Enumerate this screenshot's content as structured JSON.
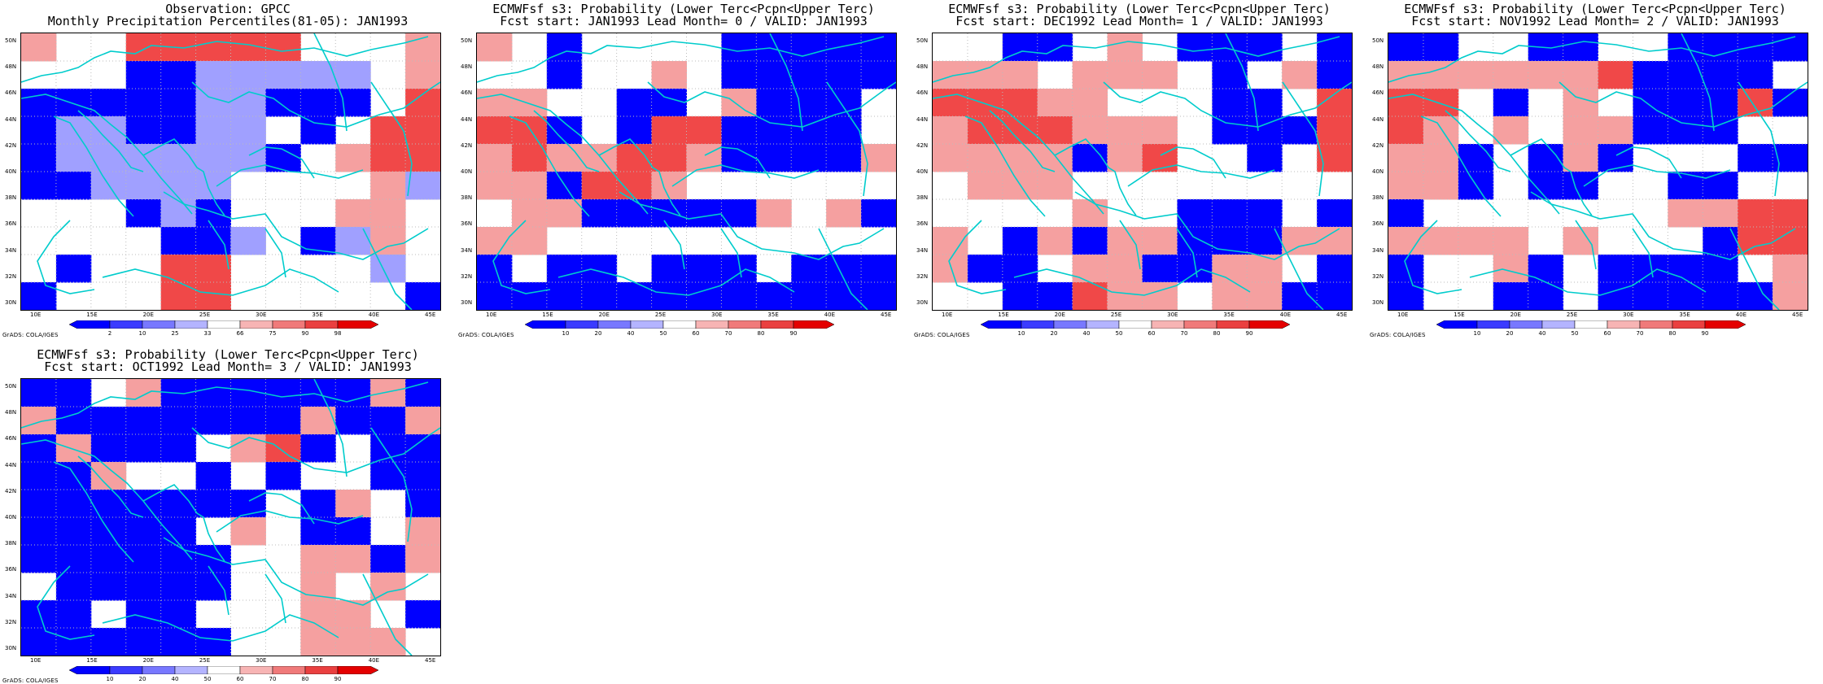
{
  "credit": "GrADS: COLA/IGES",
  "lat_labels": [
    "50N",
    "48N",
    "46N",
    "44N",
    "42N",
    "40N",
    "38N",
    "36N",
    "34N",
    "32N",
    "30N"
  ],
  "lon_labels": [
    "10E",
    "15E",
    "20E",
    "25E",
    "30E",
    "35E",
    "40E",
    "45E"
  ],
  "observation_colorbar": [
    "2",
    "10",
    "25",
    "33",
    "66",
    "75",
    "90",
    "98"
  ],
  "forecast_colorbar": [
    "10",
    "20",
    "40",
    "50",
    "60",
    "70",
    "80",
    "90"
  ],
  "colors": {
    "dark_blue": "#0000ff",
    "mid_blue": "#4444ff",
    "light_blue": "#a0a0ff",
    "light_red": "#f5a0a0",
    "mid_red": "#f04848",
    "dark_red": "#e81010",
    "coast": "#00cccc"
  },
  "panels": [
    {
      "title1": "Observation: GPCC",
      "title2": "Monthly Precipitation Percentiles(81-05): JAN1993",
      "cbar": "observation",
      "grid": [
        "r..RRRRR...r",
        "...BBbbbbb.r",
        "BBBBBbbBBB.R",
        "BbbBBbb.B.RR",
        "BbbbbbbB.rRR",
        "BBbbbb....rb",
        "...BbB...rr.",
        "....BBb.Bbr.",
        ".B..RR....b.",
        "B...RR.....B"
      ]
    },
    {
      "title1": "ECMWFsf s3: Probability (Lower Terc<Pcpn<Upper Terc)",
      "title2": "Fcst start: JAN1993  Lead Month= 0 / VALID: JAN1993",
      "cbar": "forecast",
      "grid": [
        "r.B....BBBBB",
        "..B..r.BBBBB",
        "rr..BB.rBBB.",
        "RRB.BRRBBBB.",
        "rRrrRRrBBBBr",
        "rrBRRr......",
        ".rrBBBBBr.rB",
        "rr..........",
        "B.BB.BBB.BBB",
        "BBBBBBBBBBBB"
      ]
    },
    {
      "title1": "ECMWFsf s3: Probability (Lower Terc<Pcpn<Upper Terc)",
      "title2": "Fcst start: DEC1992  Lead Month= 1 / VALID: JAN1993",
      "cbar": "forecast",
      "grid": [
        "..BB.r.BBB.B",
        "rrr.rrr.B.rB",
        "RRRrr...BB.R",
        "rRRRrrr.BBBR",
        "rrrrBrR..B.R",
        ".rrr........",
        "....r..BBB.B",
        "r.BrBrrBBBrr",
        "rBB.rrBBrr.B",
        "..BBRrr.rrBB"
      ]
    },
    {
      "title1": "ECMWFsf s3: Probability (Lower Terc<Pcpn<Upper Terc)",
      "title2": "Fcst start: NOV1992  Lead Month= 2 / VALID: JAN1993",
      "cbar": "forecast",
      "grid": [
        "BB..BB..BBBB",
        "rrrrrrRBBBB.",
        "RR.B.r.BBBRB",
        "Rr.r.rrBBB..",
        "rrB.BrB...BB",
        "rrB.BB..BB..",
        "B.......rrRR",
        "rrrr.r...BRR",
        "B..rB.BBBB.r",
        "B..BB.BBBBBr"
      ]
    },
    {
      "title1": "ECMWFsf s3: Probability (Lower Terc<Pcpn<Upper Terc)",
      "title2": "Fcst start: OCT1992  Lead Month= 3 / VALID: JAN1993",
      "cbar": "forecast",
      "grid": [
        "BB.rBBBBBBrB",
        "rBBBBBBBrBBr",
        "BrBBB.rRB.BB",
        "BBr..B.B..BB",
        "BBBBBBB.Br.B",
        "BBBBB.r.BB.r",
        "BBBBBB..rrBr",
        ".BBBBB..r.r.",
        "BB.BB...rr.B",
        "BBBBBB..rrr."
      ]
    }
  ]
}
